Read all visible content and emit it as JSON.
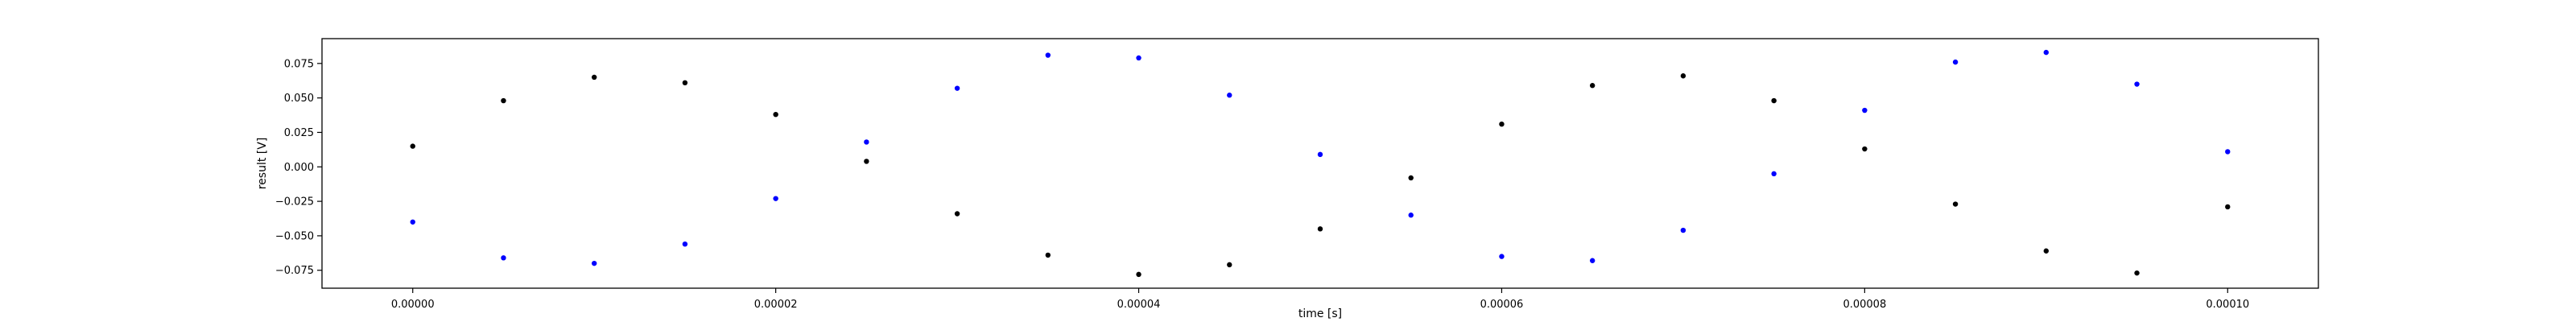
{
  "chart_data": {
    "type": "scatter",
    "title": "",
    "xlabel": "time [s]",
    "ylabel": "result [V]",
    "xlim": [
      -5e-06,
      0.000105
    ],
    "ylim": [
      -0.088,
      0.093
    ],
    "grid": false,
    "legend": "none",
    "x_ticks": [
      0.0,
      2e-05,
      4e-05,
      6e-05,
      8e-05,
      0.0001
    ],
    "x_tick_labels": [
      "0.00000",
      "0.00002",
      "0.00004",
      "0.00006",
      "0.00008",
      "0.00010"
    ],
    "y_ticks": [
      -0.075,
      -0.05,
      -0.025,
      0.0,
      0.025,
      0.05,
      0.075
    ],
    "y_tick_labels": [
      "−0.075",
      "−0.050",
      "−0.025",
      "0.000",
      "0.025",
      "0.050",
      "0.075"
    ],
    "series": [
      {
        "color": "#000000",
        "marker": "dot",
        "x": [
          0.0,
          5e-06,
          1e-05,
          1.5e-05,
          2e-05,
          2.5e-05,
          3e-05,
          3.5e-05,
          4e-05,
          4.5e-05,
          5e-05,
          5.5e-05,
          6e-05,
          6.5e-05,
          7e-05,
          7.5e-05,
          8e-05,
          8.5e-05,
          9e-05,
          9.5e-05,
          0.0001
        ],
        "y": [
          0.015,
          0.048,
          0.065,
          0.061,
          0.038,
          0.004,
          -0.034,
          -0.064,
          -0.078,
          -0.071,
          -0.045,
          -0.008,
          0.031,
          0.059,
          0.066,
          0.048,
          0.013,
          -0.027,
          -0.061,
          -0.077,
          -0.029
        ]
      },
      {
        "color": "#0000ff",
        "marker": "dot",
        "x": [
          0.0,
          5e-06,
          1e-05,
          1.5e-05,
          2e-05,
          2.5e-05,
          3e-05,
          3.5e-05,
          4e-05,
          4.5e-05,
          5e-05,
          5.5e-05,
          6e-05,
          6.5e-05,
          7e-05,
          7.5e-05,
          8e-05,
          8.5e-05,
          9e-05,
          9.5e-05,
          0.0001
        ],
        "y": [
          -0.04,
          -0.066,
          -0.07,
          -0.056,
          -0.023,
          0.018,
          0.057,
          0.081,
          0.079,
          0.052,
          0.009,
          -0.035,
          -0.065,
          -0.068,
          -0.046,
          -0.005,
          0.041,
          0.076,
          0.083,
          0.06,
          0.011
        ]
      }
    ]
  }
}
